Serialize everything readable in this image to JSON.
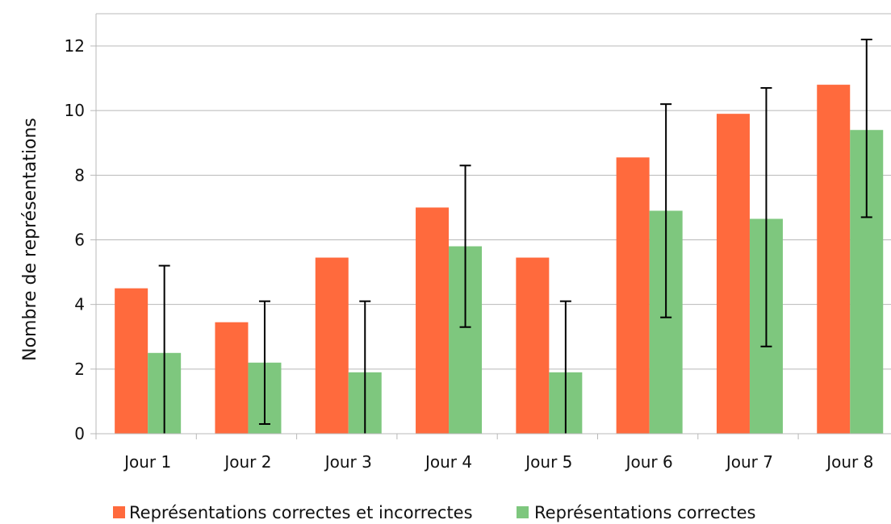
{
  "chart_data": {
    "type": "bar",
    "title": "",
    "xlabel": "",
    "ylabel": "Nombre de représentations",
    "ylim": [
      0,
      12
    ],
    "yticks": [
      0,
      2,
      4,
      6,
      8,
      10,
      12
    ],
    "grid": true,
    "legend_position": "bottom",
    "categories": [
      "Jour 1",
      "Jour 2",
      "Jour 3",
      "Jour 4",
      "Jour 5",
      "Jour 6",
      "Jour 7",
      "Jour 8"
    ],
    "series": [
      {
        "name": "Représentations correctes et incorrectes",
        "color": "#ff6a3d",
        "values": [
          4.5,
          3.45,
          5.45,
          7.0,
          5.45,
          8.55,
          9.9,
          10.8
        ]
      },
      {
        "name": "Représentations correctes",
        "color": "#7ec77e",
        "values": [
          2.5,
          2.2,
          1.9,
          5.8,
          1.9,
          6.9,
          6.65,
          9.4
        ],
        "error_low": [
          0.0,
          0.3,
          0.0,
          3.3,
          0.0,
          3.6,
          2.7,
          6.7
        ],
        "error_high": [
          5.2,
          4.1,
          4.1,
          8.3,
          4.1,
          10.2,
          10.7,
          12.2
        ]
      }
    ]
  }
}
